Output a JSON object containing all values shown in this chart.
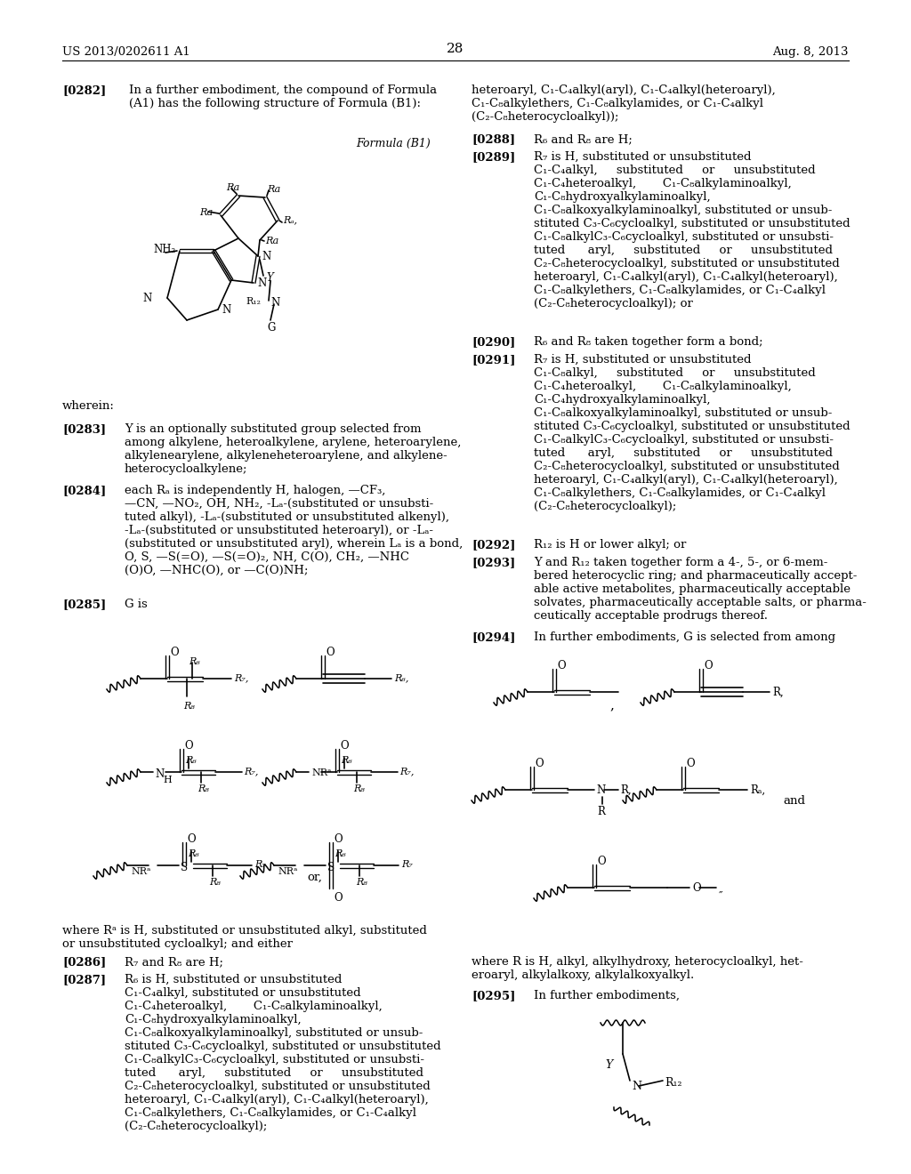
{
  "figsize": [
    10.24,
    13.2
  ],
  "dpi": 100,
  "bg": "#ffffff",
  "header_left": "US 2013/0202611 A1",
  "header_right": "Aug. 8, 2013",
  "page_num": "28"
}
